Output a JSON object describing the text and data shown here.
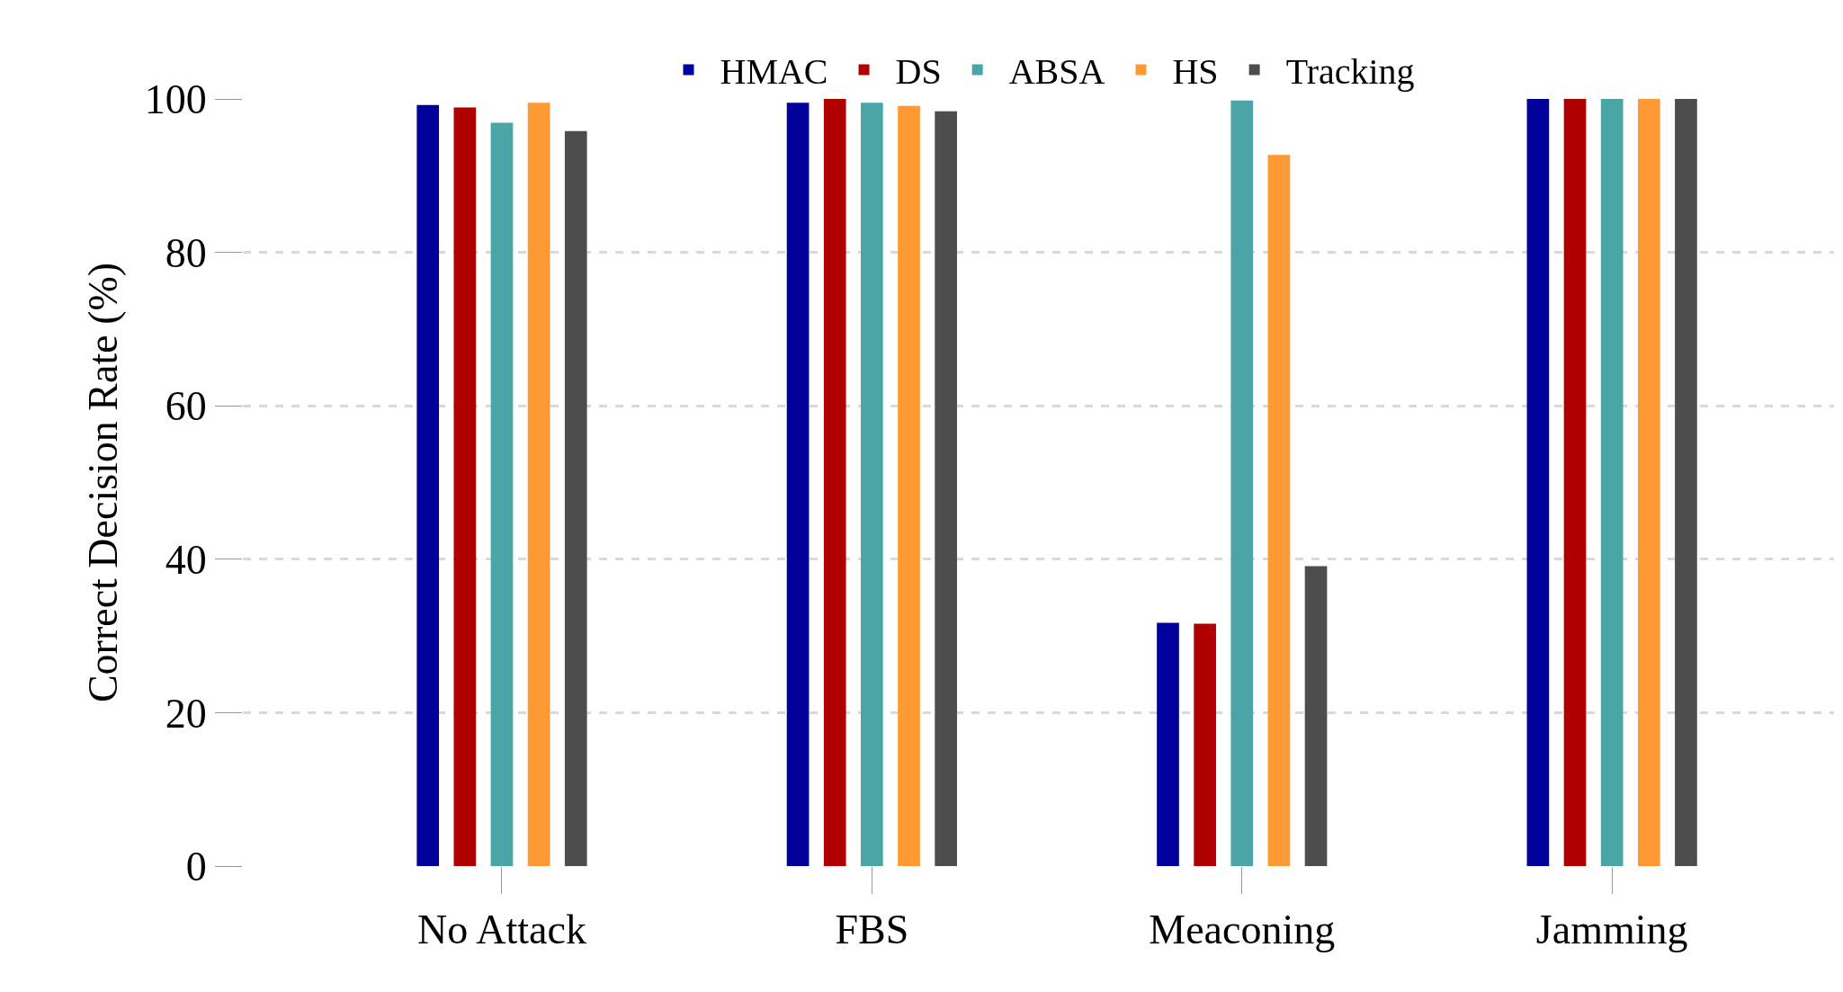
{
  "chart_data": {
    "type": "bar",
    "ylabel": "Correct Decision Rate (%)",
    "categories": [
      "No Attack",
      "FBS",
      "Meaconing",
      "Jamming"
    ],
    "series": [
      {
        "name": "HMAC",
        "color": "#00009a",
        "values": [
          99.2,
          99.5,
          31.7,
          100
        ]
      },
      {
        "name": "DS",
        "color": "#b00000",
        "values": [
          98.9,
          100,
          31.6,
          100
        ]
      },
      {
        "name": "ABSA",
        "color": "#4aa6a6",
        "values": [
          96.9,
          99.5,
          99.8,
          100
        ]
      },
      {
        "name": "HS",
        "color": "#ff9933",
        "values": [
          99.5,
          99.1,
          92.7,
          100
        ]
      },
      {
        "name": "Tracking",
        "color": "#4d4d4d",
        "values": [
          95.8,
          98.4,
          39.1,
          100
        ]
      }
    ],
    "ylim": [
      0,
      100
    ],
    "yticks": [
      0,
      20,
      40,
      60,
      80,
      100
    ],
    "grid": "y",
    "legend": "top"
  }
}
